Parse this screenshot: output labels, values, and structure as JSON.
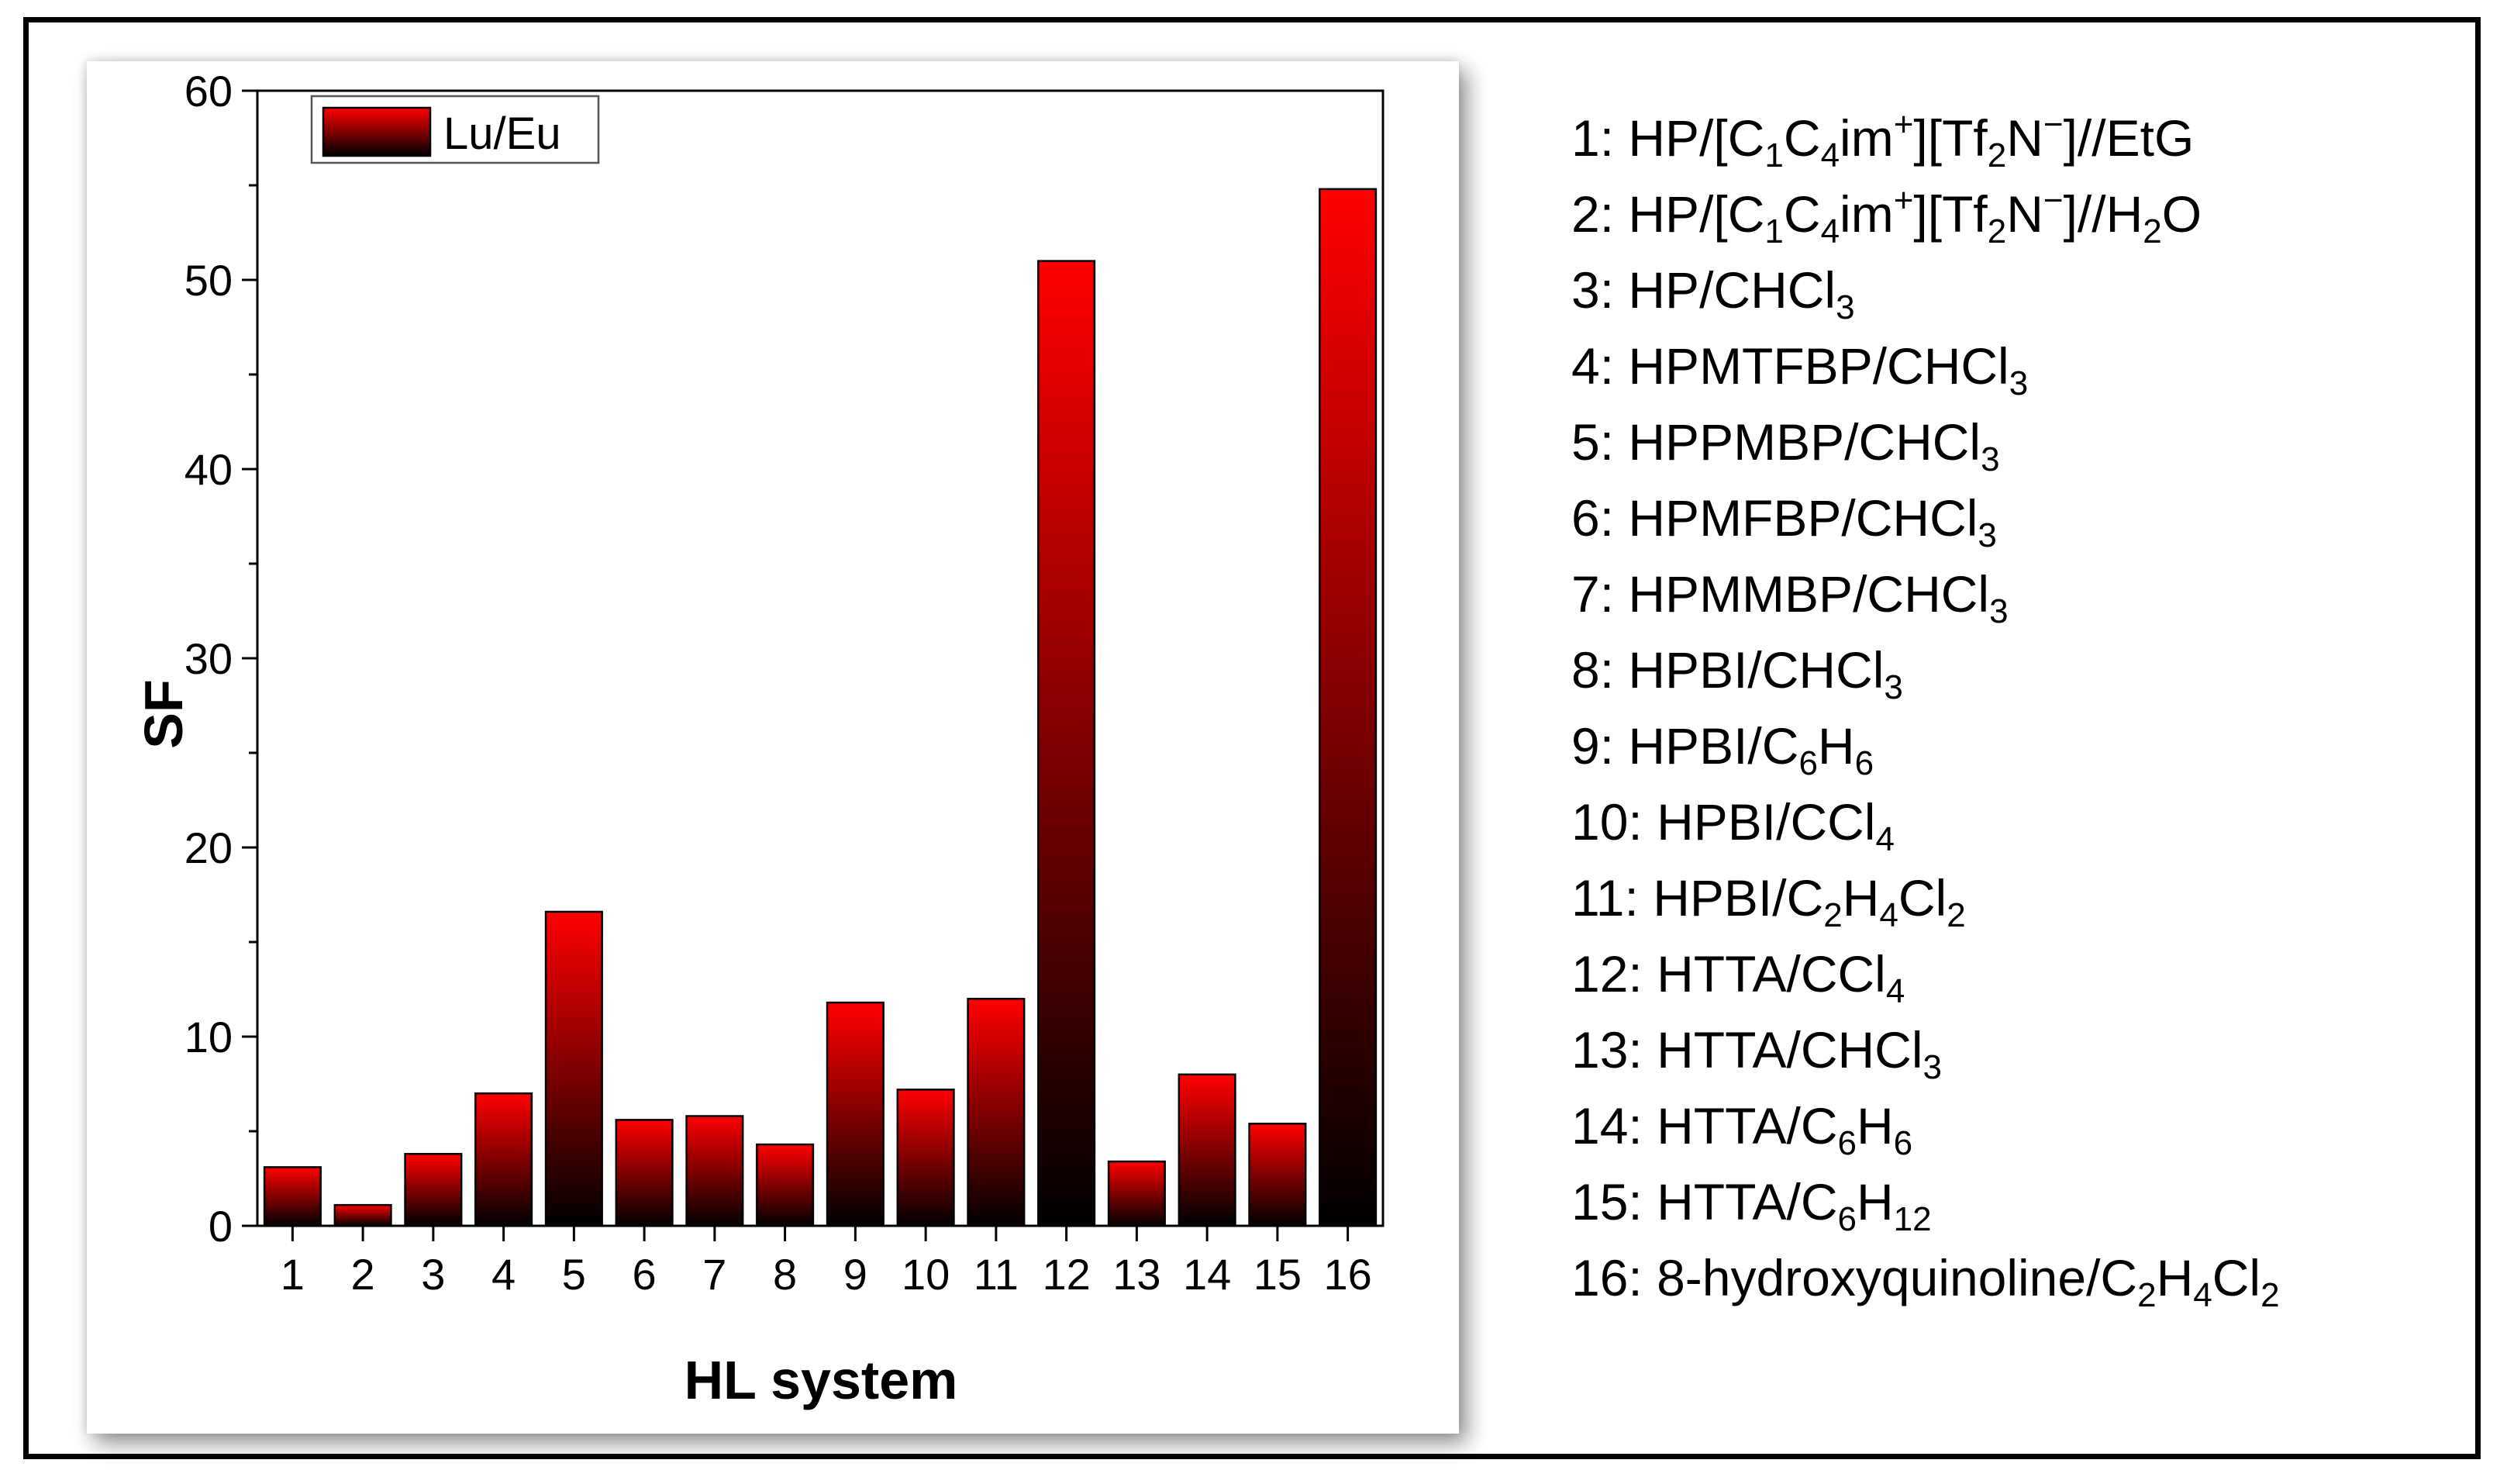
{
  "chart_data": {
    "type": "bar",
    "title": "",
    "xlabel": "HL system",
    "ylabel": "SF",
    "ylim": [
      0,
      60
    ],
    "yticks": [
      0,
      10,
      20,
      30,
      40,
      50,
      60
    ],
    "grid": false,
    "legend_position": "top-left",
    "categories": [
      "1",
      "2",
      "3",
      "4",
      "5",
      "6",
      "7",
      "8",
      "9",
      "10",
      "11",
      "12",
      "13",
      "14",
      "15",
      "16"
    ],
    "series": [
      {
        "name": "Lu/Eu",
        "values": [
          3.1,
          1.1,
          3.8,
          7.0,
          16.6,
          5.6,
          5.8,
          4.3,
          11.8,
          7.2,
          12.0,
          51.0,
          3.4,
          8.0,
          5.4,
          54.8
        ]
      }
    ],
    "colors": {
      "bar_top": "#ff0000",
      "bar_bottom": "#000000",
      "axis": "#000000"
    }
  },
  "systems_legend": [
    "1: HP/[C<sub>1</sub>C<sub>4</sub>im<sup>+</sup>][Tf<sub>2</sub>N<sup>−</sup>]//EtG",
    "2: HP/[C<sub>1</sub>C<sub>4</sub>im<sup>+</sup>][Tf<sub>2</sub>N<sup>−</sup>]//H<sub>2</sub>O",
    "3: HP/CHCl<sub>3</sub>",
    "4: HPMTFBP/CHCl<sub>3</sub>",
    "5: HPPMBP/CHCl<sub>3</sub>",
    "6: HPMFBP/CHCl<sub>3</sub>",
    "7: HPMMBP/CHCl<sub>3</sub>",
    "8: HPBI/CHCl<sub>3</sub>",
    "9: HPBI/C<sub>6</sub>H<sub>6</sub>",
    "10: HPBI/CCl<sub>4</sub>",
    "11: HPBI/C<sub>2</sub>H<sub>4</sub>Cl<sub>2</sub>",
    "12: HTTA/CCl<sub>4</sub>",
    "13: HTTA/CHCl<sub>3</sub>",
    "14: HTTA/C<sub>6</sub>H<sub>6</sub>",
    "15: HTTA/C<sub>6</sub>H<sub>12</sub>",
    "16: 8-hydroxyquinoline/C<sub>2</sub>H<sub>4</sub>Cl<sub>2</sub>"
  ]
}
